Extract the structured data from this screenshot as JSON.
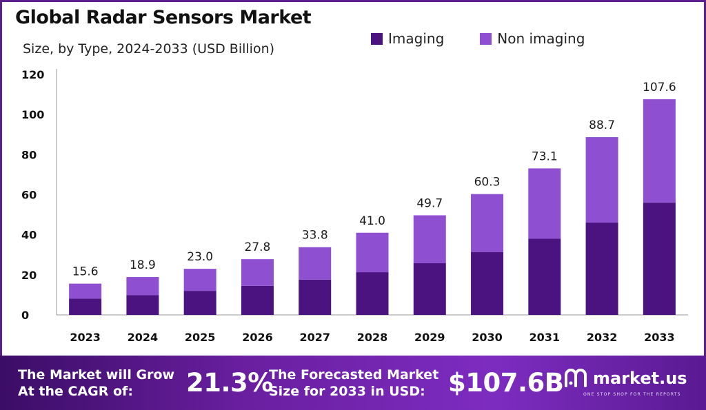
{
  "title": "Global Radar Sensors Market",
  "subtitle": "Size, by Type, 2024-2033 (USD Billion)",
  "legend": [
    {
      "label": "Imaging",
      "color": "#4a1380"
    },
    {
      "label": "Non imaging",
      "color": "#8e4fd1"
    }
  ],
  "chart_data": {
    "type": "bar",
    "stacked": true,
    "categories": [
      "2023",
      "2024",
      "2025",
      "2026",
      "2027",
      "2028",
      "2029",
      "2030",
      "2031",
      "2032",
      "2033"
    ],
    "series": [
      {
        "name": "Imaging",
        "color": "#4a1380",
        "values": [
          8.1,
          9.8,
          12.0,
          14.5,
          17.6,
          21.3,
          25.8,
          31.4,
          38.0,
          46.1,
          56.0
        ]
      },
      {
        "name": "Non imaging",
        "color": "#8e4fd1",
        "values": [
          7.5,
          9.1,
          11.0,
          13.3,
          16.2,
          19.7,
          23.9,
          28.9,
          35.1,
          42.6,
          51.6
        ]
      }
    ],
    "totals": [
      15.6,
      18.9,
      23.0,
      27.8,
      33.8,
      41.0,
      49.7,
      60.3,
      73.1,
      88.7,
      107.6
    ],
    "total_labels": [
      "15.6",
      "18.9",
      "23.0",
      "27.8",
      "33.8",
      "41.0",
      "49.7",
      "60.3",
      "73.1",
      "88.7",
      "107.6"
    ],
    "yticks": [
      0,
      20,
      40,
      60,
      80,
      100,
      120
    ],
    "ylim": [
      0,
      120
    ],
    "grid": false,
    "legend_position": "top-right"
  },
  "banner": {
    "cagr_text_line1": "The Market will Grow",
    "cagr_text_line2": "At the CAGR of:",
    "cagr_value": "21.3%",
    "forecast_text_line1": "The Forecasted Market",
    "forecast_text_line2": "Size for  2033 in USD:",
    "forecast_value": "$107.6B",
    "brand": "market.us",
    "brand_tagline": "ONE STOP SHOP FOR THE REPORTS",
    "brand_icon": "market-us-logo-icon"
  }
}
